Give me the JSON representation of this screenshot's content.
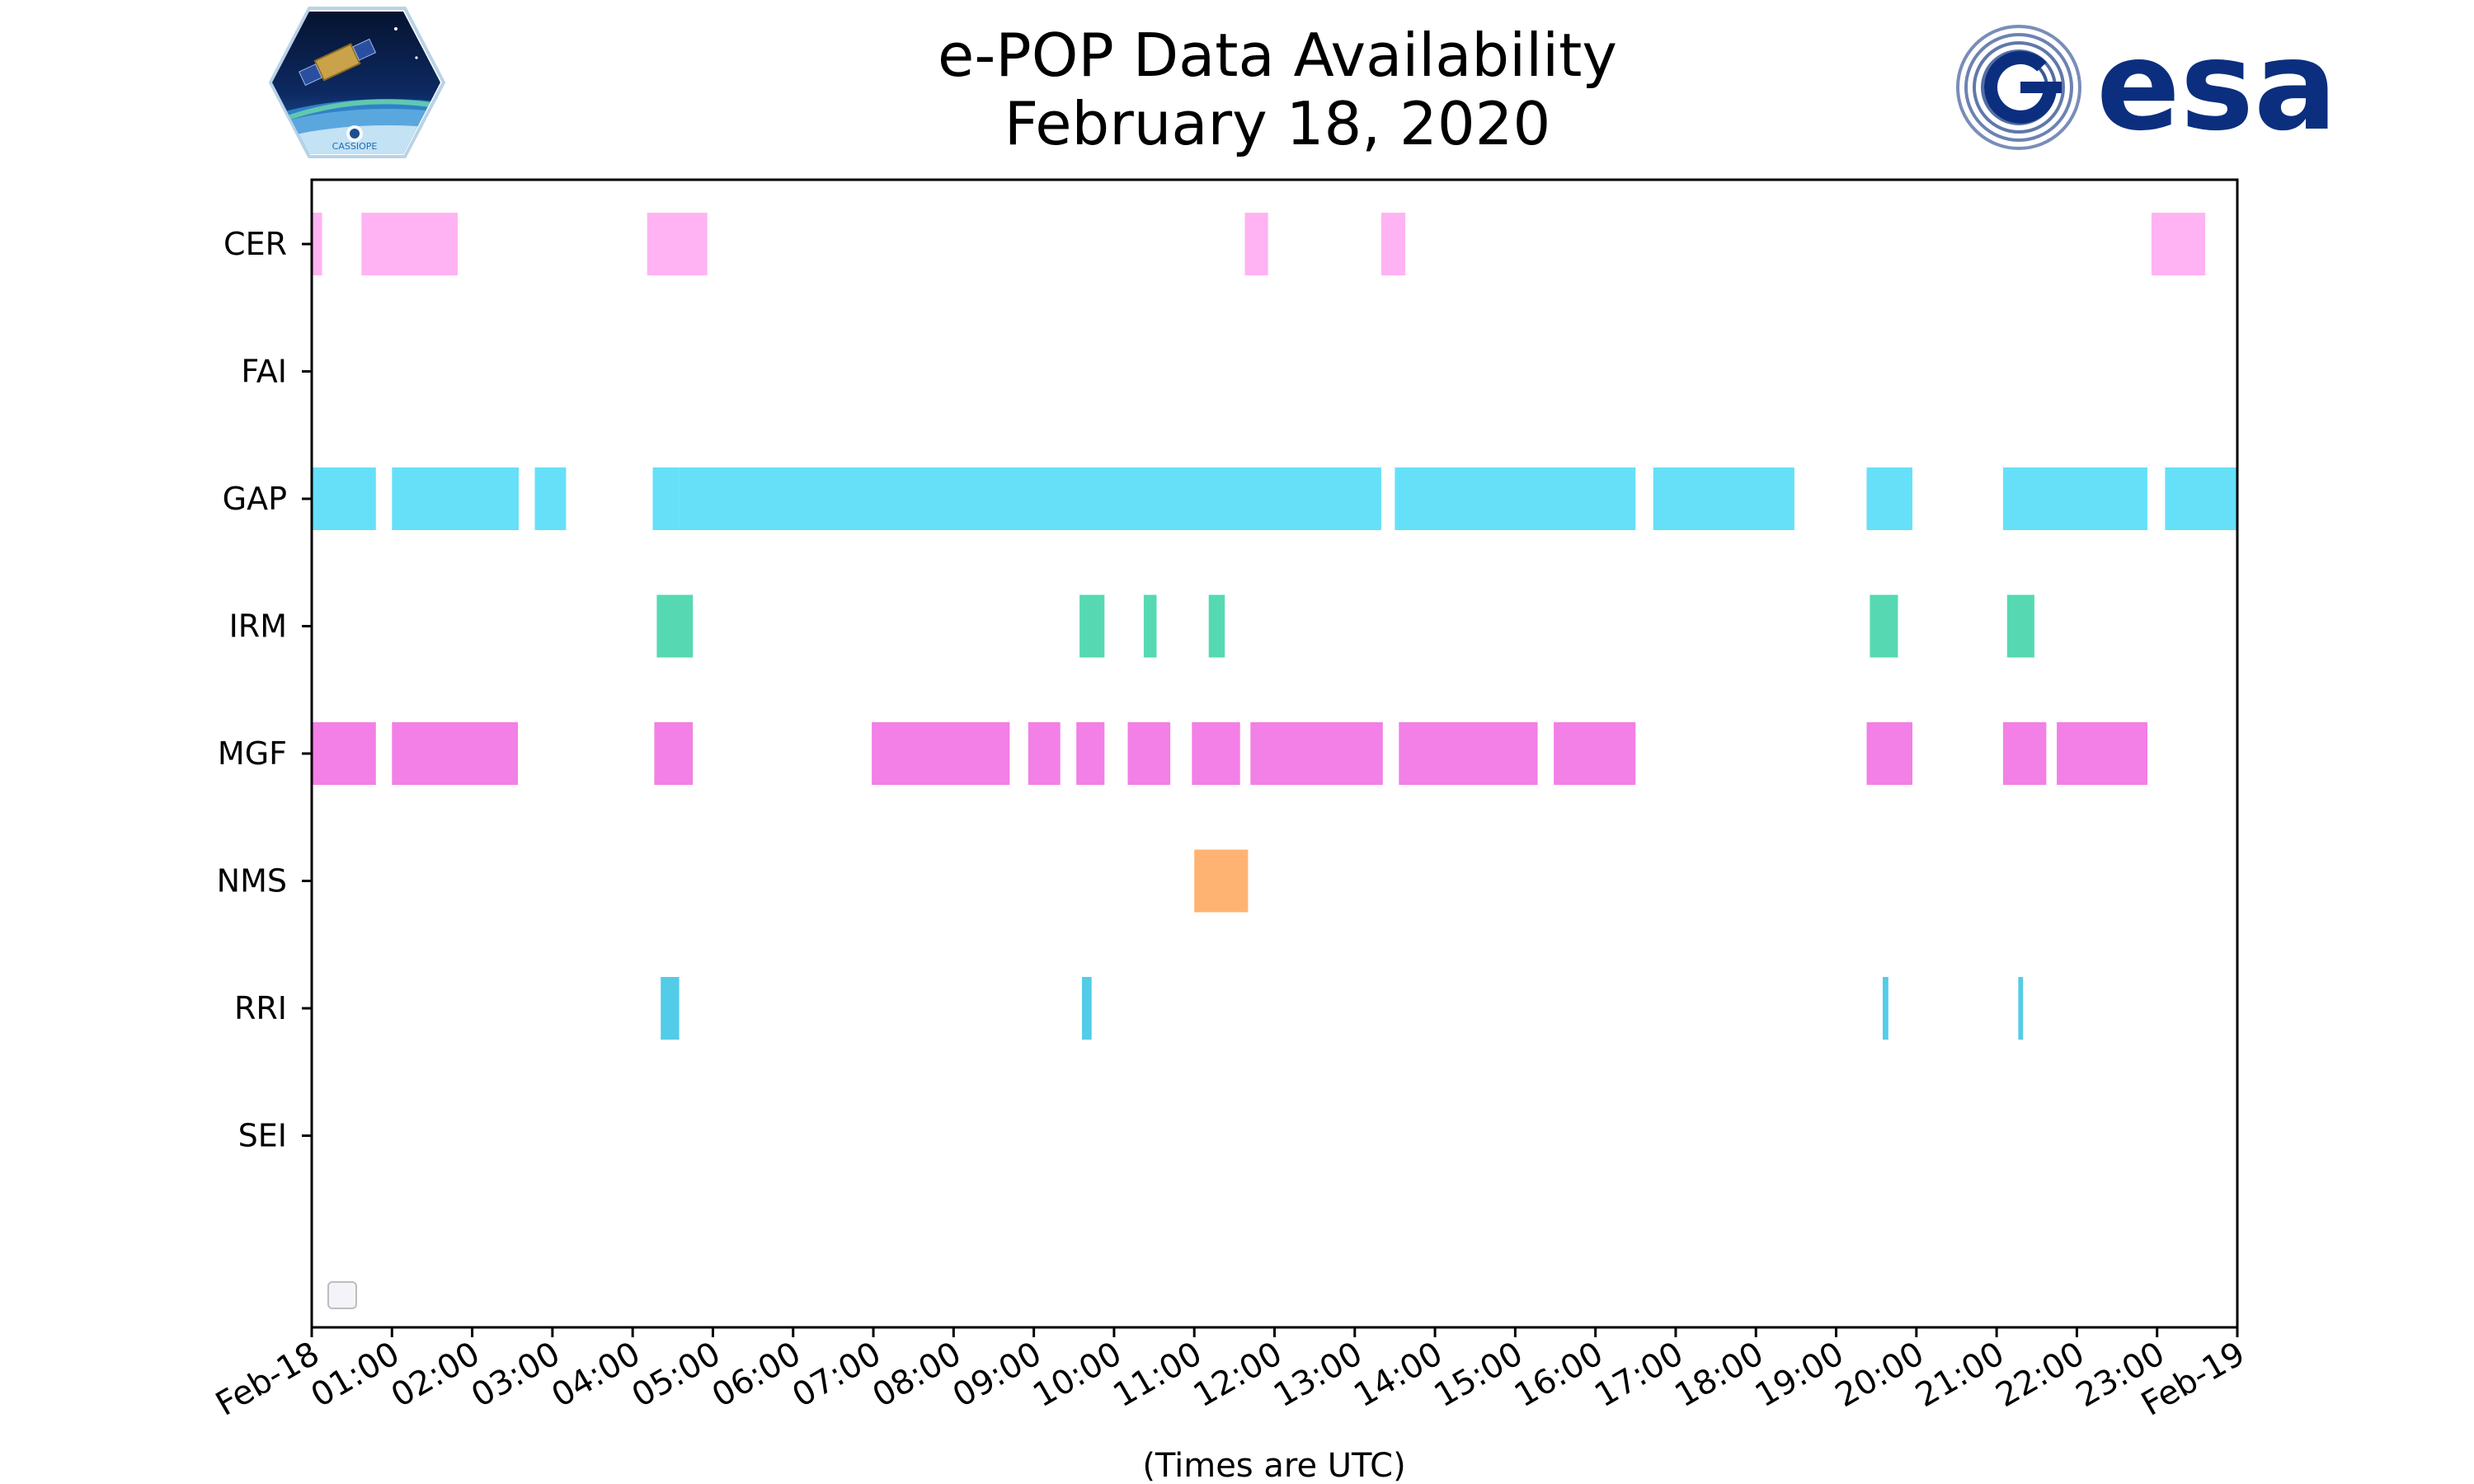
{
  "chart_data": {
    "type": "timeline",
    "title": "e-POP Data Availability",
    "subtitle": "February 18, 2020",
    "xlabel": "(Times are UTC)",
    "ylabel": "",
    "x_unit": "hours UTC",
    "xlim": [
      0,
      24
    ],
    "x_tick_values": [
      0,
      1,
      2,
      3,
      4,
      5,
      6,
      7,
      8,
      9,
      10,
      11,
      12,
      13,
      14,
      15,
      16,
      17,
      18,
      19,
      20,
      21,
      22,
      23,
      24
    ],
    "x_tick_labels": [
      "Feb-18",
      "01:00",
      "02:00",
      "03:00",
      "04:00",
      "05:00",
      "06:00",
      "07:00",
      "08:00",
      "09:00",
      "10:00",
      "11:00",
      "12:00",
      "13:00",
      "14:00",
      "15:00",
      "16:00",
      "17:00",
      "18:00",
      "19:00",
      "20:00",
      "21:00",
      "22:00",
      "23:00",
      "Feb-19"
    ],
    "grid": false,
    "legend": {
      "location": "lower-left",
      "entries": []
    },
    "categories": [
      "CER",
      "FAI",
      "GAP",
      "IRM",
      "MGF",
      "NMS",
      "RRI",
      "SEI"
    ],
    "series": [
      {
        "category": "CER",
        "color": "#ff99ee",
        "intervals": [
          [
            0.0,
            0.13
          ],
          [
            0.62,
            1.82
          ],
          [
            4.18,
            4.93
          ],
          [
            11.63,
            11.92
          ],
          [
            13.33,
            13.63
          ],
          [
            22.93,
            23.6
          ]
        ]
      },
      {
        "category": "FAI",
        "color": "#cccccc",
        "intervals": []
      },
      {
        "category": "GAP",
        "color": "#33d6f5",
        "intervals": [
          [
            0.0,
            0.8
          ],
          [
            1.0,
            2.58
          ],
          [
            2.78,
            3.17
          ],
          [
            4.25,
            4.58
          ],
          [
            4.58,
            13.33
          ],
          [
            13.5,
            16.5
          ],
          [
            16.72,
            18.48
          ],
          [
            19.38,
            19.95
          ],
          [
            21.08,
            22.88
          ],
          [
            23.1,
            24.0
          ]
        ]
      },
      {
        "category": "IRM",
        "color": "#1ecc9a",
        "intervals": [
          [
            4.3,
            4.75
          ],
          [
            9.57,
            9.88
          ],
          [
            10.37,
            10.53
          ],
          [
            11.18,
            11.38
          ],
          [
            19.42,
            19.77
          ],
          [
            21.13,
            21.47
          ]
        ]
      },
      {
        "category": "MGF",
        "color": "#ee55dd",
        "intervals": [
          [
            0.0,
            0.8
          ],
          [
            1.0,
            2.57
          ],
          [
            4.27,
            4.75
          ],
          [
            6.98,
            8.7
          ],
          [
            8.93,
            9.33
          ],
          [
            9.53,
            9.88
          ],
          [
            10.17,
            10.7
          ],
          [
            10.97,
            11.57
          ],
          [
            11.7,
            13.35
          ],
          [
            13.55,
            15.28
          ],
          [
            15.48,
            16.5
          ],
          [
            19.38,
            19.95
          ],
          [
            21.08,
            21.62
          ],
          [
            21.75,
            22.88
          ]
        ]
      },
      {
        "category": "NMS",
        "color": "#ff9944",
        "intervals": [
          [
            11.0,
            11.67
          ]
        ]
      },
      {
        "category": "RRI",
        "color": "#1abbe0",
        "intervals": [
          [
            4.35,
            4.58
          ],
          [
            9.6,
            9.72
          ],
          [
            19.58,
            19.65
          ],
          [
            21.27,
            21.33
          ]
        ]
      },
      {
        "category": "SEI",
        "color": "#cccccc",
        "intervals": []
      }
    ]
  },
  "logos": {
    "left": {
      "name": "CASSIOPE",
      "text": "CASSIOPE"
    },
    "right": {
      "name": "esa",
      "text": "esa"
    }
  }
}
